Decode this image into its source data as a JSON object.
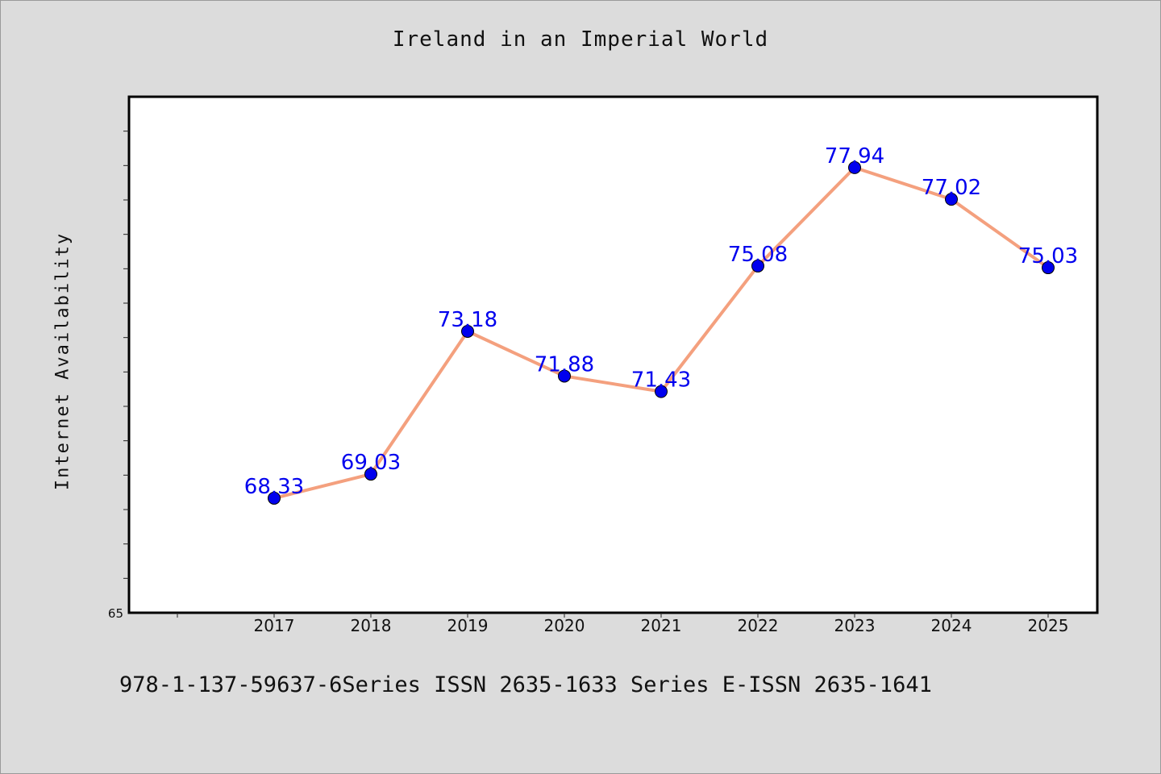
{
  "chart_data": {
    "type": "line",
    "title": "Ireland in an Imperial World",
    "ylabel": "Internet Availability",
    "xlabel": "",
    "footer": "978-1-137-59637-6Series ISSN 2635-1633 Series E-ISSN 2635-1641",
    "categories": [
      "2017",
      "2018",
      "2019",
      "2020",
      "2021",
      "2022",
      "2023",
      "2024",
      "2025"
    ],
    "series": [
      {
        "values": [
          68.33,
          69.03,
          73.18,
          71.88,
          71.43,
          75.08,
          77.94,
          77.02,
          75.03
        ],
        "labels": [
          "68.33",
          "69.03",
          "73.18",
          "71.88",
          "71.43",
          "75.08",
          "77.94",
          "77.02",
          "75.03"
        ]
      }
    ],
    "ytick_labels": [
      "65"
    ],
    "ylim": [
      65,
      80
    ],
    "grid": false,
    "legend": "none",
    "colors": {
      "line": "#f4a07e",
      "marker": "#0000ee",
      "data_label": "#0000ee",
      "plot_background": "#ffffff",
      "page_background": "#dcdcdc"
    }
  }
}
